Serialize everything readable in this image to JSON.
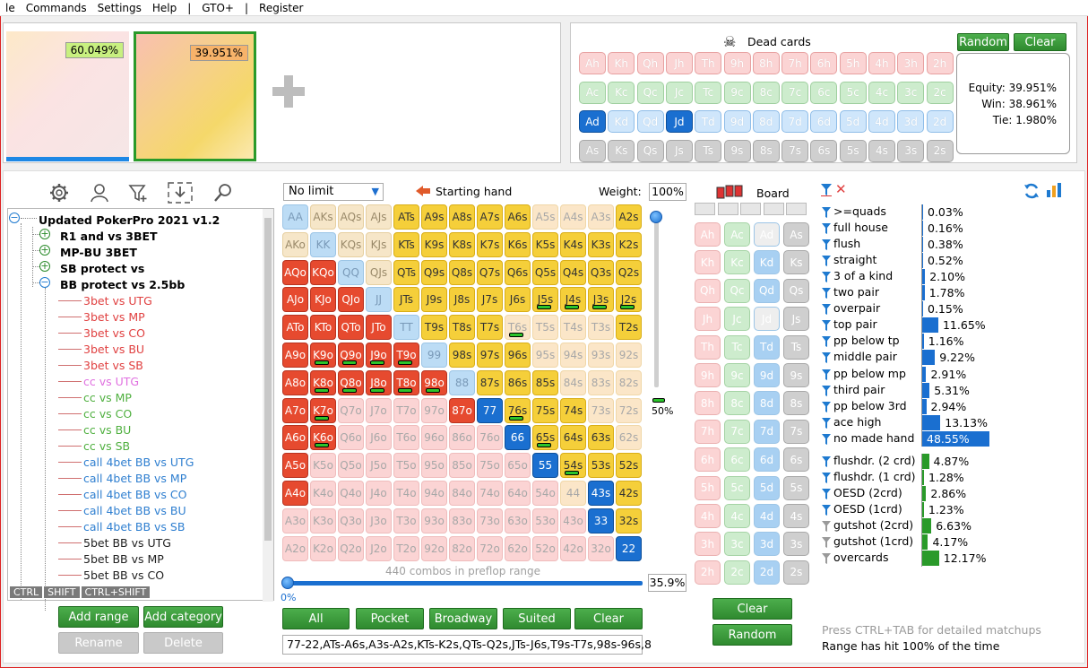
{
  "menu": [
    "le",
    "Commands",
    "Settings",
    "Help",
    "|",
    "GTO+",
    "|",
    "Register"
  ],
  "equity_tiles": [
    {
      "pct": "60.049%",
      "selected": false
    },
    {
      "pct": "39.951%",
      "selected": true
    }
  ],
  "dead_cards": {
    "title": "Dead cards",
    "random_label": "Random",
    "clear_label": "Clear",
    "rows": [
      [
        "Ah",
        "Kh",
        "Qh",
        "Jh",
        "Th",
        "9h",
        "8h",
        "7h",
        "6h",
        "5h",
        "4h",
        "3h",
        "2h"
      ],
      [
        "Ac",
        "Kc",
        "Qc",
        "Jc",
        "Tc",
        "9c",
        "8c",
        "7c",
        "6c",
        "5c",
        "4c",
        "3c",
        "2c"
      ],
      [
        "Ad",
        "Kd",
        "Qd",
        "Jd",
        "Td",
        "9d",
        "8d",
        "7d",
        "6d",
        "5d",
        "4d",
        "3d",
        "2d"
      ],
      [
        "As",
        "Ks",
        "Qs",
        "Js",
        "Ts",
        "9s",
        "8s",
        "7s",
        "6s",
        "5s",
        "4s",
        "3s",
        "2s"
      ]
    ],
    "selected": [
      "Ad",
      "Jd"
    ]
  },
  "equity": {
    "equity": "Equity: 39.951%",
    "win": "Win: 38.961%",
    "tie": "Tie: 1.980%"
  },
  "tree": {
    "root": "Updated PokerPro 2021 v1.2",
    "groups": [
      {
        "label": "R1 and vs 3BET",
        "expanded": false
      },
      {
        "label": "MP-BU 3BET",
        "expanded": false
      },
      {
        "label": "SB protect vs",
        "expanded": false
      },
      {
        "label": "BB protect vs 2.5bb",
        "expanded": true
      }
    ],
    "children": [
      {
        "label": "3bet vs UTG",
        "color": "#e04040"
      },
      {
        "label": "3bet vs MP",
        "color": "#e04040"
      },
      {
        "label": "3bet vs CO",
        "color": "#e04040"
      },
      {
        "label": "3bet vs BU",
        "color": "#e04040"
      },
      {
        "label": "3bet vs SB",
        "color": "#e04040"
      },
      {
        "label": "cc vs UTG",
        "color": "#e070e0"
      },
      {
        "label": "cc vs MP",
        "color": "#50b040"
      },
      {
        "label": "cc vs CO",
        "color": "#50b040"
      },
      {
        "label": "cc vs BU",
        "color": "#50b040"
      },
      {
        "label": "cc vs SB",
        "color": "#50b040"
      },
      {
        "label": "call 4bet BB vs UTG",
        "color": "#2f7fd0"
      },
      {
        "label": "call 4bet BB vs MP",
        "color": "#2f7fd0"
      },
      {
        "label": "call 4bet BB vs CO",
        "color": "#2f7fd0"
      },
      {
        "label": "call 4bet BB vs BU",
        "color": "#2f7fd0"
      },
      {
        "label": "call 4bet BB vs SB",
        "color": "#2f7fd0"
      },
      {
        "label": "5bet BB vs UTG",
        "color": "#222"
      },
      {
        "label": "5bet BB vs MP",
        "color": "#222"
      },
      {
        "label": "5bet BB vs CO",
        "color": "#222"
      }
    ],
    "mods": [
      "CTRL",
      "SHIFT",
      "CTRL+SHIFT"
    ],
    "add_range": "Add range",
    "add_category": "Add category",
    "rename": "Rename",
    "delete": "Delete"
  },
  "range": {
    "limit": "No limit",
    "starting_hand": "Starting hand",
    "weight_label": "Weight:",
    "weight_value": "100%",
    "slider_pct": "50%",
    "combos": "440 combos in preflop range",
    "pct": "35.9%",
    "zero": "0%",
    "buttons": [
      "All",
      "Pocket",
      "Broadway",
      "Suited",
      "Clear"
    ],
    "text": "77-22,ATs-A6s,A3s-A2s,KTs-K2s,QTs-Q2s,JTs-J6s,T9s-T7s,98s-96s,8",
    "grid": [
      [
        "AA",
        "AKs",
        "AQs",
        "AJs",
        "ATs",
        "A9s",
        "A8s",
        "A7s",
        "A6s",
        "A5s",
        "A4s",
        "A3s",
        "A2s"
      ],
      [
        "AKo",
        "KK",
        "KQs",
        "KJs",
        "KTs",
        "K9s",
        "K8s",
        "K7s",
        "K6s",
        "K5s",
        "K4s",
        "K3s",
        "K2s"
      ],
      [
        "AQo",
        "KQo",
        "QQ",
        "QJs",
        "QTs",
        "Q9s",
        "Q8s",
        "Q7s",
        "Q6s",
        "Q5s",
        "Q4s",
        "Q3s",
        "Q2s"
      ],
      [
        "AJo",
        "KJo",
        "QJo",
        "JJ",
        "JTs",
        "J9s",
        "J8s",
        "J7s",
        "J6s",
        "J5s",
        "J4s",
        "J3s",
        "J2s"
      ],
      [
        "ATo",
        "KTo",
        "QTo",
        "JTo",
        "TT",
        "T9s",
        "T8s",
        "T7s",
        "T6s",
        "T5s",
        "T4s",
        "T3s",
        "T2s"
      ],
      [
        "A9o",
        "K9o",
        "Q9o",
        "J9o",
        "T9o",
        "99",
        "98s",
        "97s",
        "96s",
        "95s",
        "94s",
        "93s",
        "92s"
      ],
      [
        "A8o",
        "K8o",
        "Q8o",
        "J8o",
        "T8o",
        "98o",
        "88",
        "87s",
        "86s",
        "85s",
        "84s",
        "83s",
        "82s"
      ],
      [
        "A7o",
        "K7o",
        "Q7o",
        "J7o",
        "T7o",
        "97o",
        "87o",
        "77",
        "76s",
        "75s",
        "74s",
        "73s",
        "72s"
      ],
      [
        "A6o",
        "K6o",
        "Q6o",
        "J6o",
        "T6o",
        "96o",
        "86o",
        "76o",
        "66",
        "65s",
        "64s",
        "63s",
        "62s"
      ],
      [
        "A5o",
        "K5o",
        "Q5o",
        "J5o",
        "T5o",
        "95o",
        "85o",
        "75o",
        "65o",
        "55",
        "54s",
        "53s",
        "52s"
      ],
      [
        "A4o",
        "K4o",
        "Q4o",
        "J4o",
        "T4o",
        "94o",
        "84o",
        "74o",
        "64o",
        "54o",
        "44",
        "43s",
        "42s"
      ],
      [
        "A3o",
        "K3o",
        "Q3o",
        "J3o",
        "T3o",
        "93o",
        "83o",
        "73o",
        "63o",
        "53o",
        "43o",
        "33",
        "32s"
      ],
      [
        "A2o",
        "K2o",
        "Q2o",
        "J2o",
        "T2o",
        "92o",
        "82o",
        "72o",
        "62o",
        "52o",
        "42o",
        "32o",
        "22"
      ]
    ],
    "states": [
      "pbbbyyyyyfffy",
      "bpbbyyyyyyyyy",
      "rrpbyyyyyyyyy",
      "rrrpyyyyyyyyy",
      "rrrrpyyyffffy",
      "rrrrrpyyyffff",
      "rrrrrrpyyyfff",
      "rrffffrsyyyff",
      "rrffffffsyyyf",
      "rffffffffsyyy",
      "rffffffffffsy",
      "fffffffffffsy",
      "ffffffffffffs"
    ],
    "bars": [
      "J5s",
      "J4s",
      "J3s",
      "J2s",
      "T6s",
      "K9o",
      "Q9o",
      "J9o",
      "T9o",
      "K8o",
      "Q8o",
      "J8o",
      "T8o",
      "98o",
      "K7o",
      "76s",
      "K6o",
      "65s",
      "54s"
    ],
    "weighted": [
      "JJ",
      "TT",
      "99",
      "88"
    ]
  },
  "board": {
    "title": "Board",
    "cols": [
      [
        "Ah",
        "Kh",
        "Qh",
        "Jh",
        "Th",
        "9h",
        "8h",
        "7h",
        "6h",
        "5h",
        "4h",
        "3h",
        "2h"
      ],
      [
        "Ac",
        "Kc",
        "Qc",
        "Jc",
        "Tc",
        "9c",
        "8c",
        "7c",
        "6c",
        "5c",
        "4c",
        "3c",
        "2c"
      ],
      [
        "Ad",
        "Kd",
        "Qd",
        "Jd",
        "Td",
        "9d",
        "8d",
        "7d",
        "6d",
        "5d",
        "4d",
        "3d",
        "2d"
      ],
      [
        "As",
        "Ks",
        "Qs",
        "Js",
        "Ts",
        "9s",
        "8s",
        "7s",
        "6s",
        "5s",
        "4s",
        "3s",
        "2s"
      ]
    ],
    "clear": "Clear",
    "random": "Random"
  },
  "stats": {
    "made": [
      {
        "label": ">=quads",
        "value": "0.03%",
        "pct": 0.03
      },
      {
        "label": "full house",
        "value": "0.16%",
        "pct": 0.16
      },
      {
        "label": "flush",
        "value": "0.38%",
        "pct": 0.38
      },
      {
        "label": "straight",
        "value": "0.52%",
        "pct": 0.52
      },
      {
        "label": "3 of a kind",
        "value": "2.10%",
        "pct": 2.1
      },
      {
        "label": "two pair",
        "value": "1.78%",
        "pct": 1.78
      },
      {
        "label": "overpair",
        "value": "0.15%",
        "pct": 0.15
      },
      {
        "label": "top pair",
        "value": "11.65%",
        "pct": 11.65
      },
      {
        "label": "pp below tp",
        "value": "1.16%",
        "pct": 1.16
      },
      {
        "label": "middle pair",
        "value": "9.22%",
        "pct": 9.22
      },
      {
        "label": "pp below mp",
        "value": "2.91%",
        "pct": 2.91
      },
      {
        "label": "third pair",
        "value": "5.31%",
        "pct": 5.31
      },
      {
        "label": "pp below 3rd",
        "value": "2.94%",
        "pct": 2.94
      },
      {
        "label": "ace high",
        "value": "13.13%",
        "pct": 13.13
      },
      {
        "label": "no made hand",
        "value": "48.55%",
        "pct": 48.55
      }
    ],
    "draws": [
      {
        "label": "flushdr. (2 crd)",
        "value": "4.87%",
        "pct": 4.87,
        "grey": false
      },
      {
        "label": "flushdr. (1 crd)",
        "value": "1.28%",
        "pct": 1.28,
        "grey": false
      },
      {
        "label": "OESD (2crd)",
        "value": "2.86%",
        "pct": 2.86,
        "grey": false
      },
      {
        "label": "OESD (1crd)",
        "value": "1.23%",
        "pct": 1.23,
        "grey": false
      },
      {
        "label": "gutshot (2crd)",
        "value": "6.63%",
        "pct": 6.63,
        "grey": true
      },
      {
        "label": "gutshot (1crd)",
        "value": "4.17%",
        "pct": 4.17,
        "grey": true
      },
      {
        "label": "overcards",
        "value": "12.17%",
        "pct": 12.17,
        "grey": true
      }
    ],
    "hint": "Press CTRL+TAB for detailed matchups",
    "hit": "Range has hit 100% of the time"
  }
}
